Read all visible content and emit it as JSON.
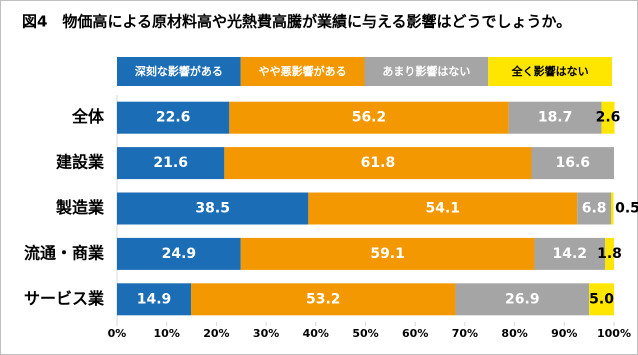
{
  "chart_data": {
    "type": "stacked-bar-horizontal",
    "title": "図4　物価高による原材料高や光熱費高騰が業績に与える影響はどうでしょうか。",
    "categories": [
      "全体",
      "建設業",
      "製造業",
      "流通・商業",
      "サービス業"
    ],
    "series": [
      {
        "name": "深刻な影響がある",
        "color": "#1b6db5",
        "values": [
          22.6,
          21.6,
          38.5,
          24.9,
          14.9
        ]
      },
      {
        "name": "やや悪影響がある",
        "color": "#f39800",
        "values": [
          56.2,
          61.8,
          54.1,
          59.1,
          53.2
        ]
      },
      {
        "name": "あまり影響はない",
        "color": "#a5a5a5",
        "values": [
          18.7,
          16.6,
          6.8,
          14.2,
          26.9
        ]
      },
      {
        "name": "全く影響はない",
        "color": "#ffe600",
        "values": [
          2.6,
          null,
          0.5,
          1.8,
          5.0
        ],
        "value_labels": [
          "2.6",
          null,
          "0.5",
          "1.8",
          "5.0"
        ]
      }
    ],
    "xlim": [
      0,
      100
    ],
    "xticks": [
      {
        "value": 0,
        "label": "0%"
      },
      {
        "value": 10,
        "label": "10%"
      },
      {
        "value": 20,
        "label": "20%"
      },
      {
        "value": 30,
        "label": "30%"
      },
      {
        "value": 40,
        "label": "40%"
      },
      {
        "value": 50,
        "label": "50%"
      },
      {
        "value": 60,
        "label": "60%"
      },
      {
        "value": 70,
        "label": "70%"
      },
      {
        "value": 80,
        "label": "80%"
      },
      {
        "value": 90,
        "label": "90%"
      },
      {
        "value": 100,
        "label": "100%"
      }
    ],
    "grid": false
  }
}
